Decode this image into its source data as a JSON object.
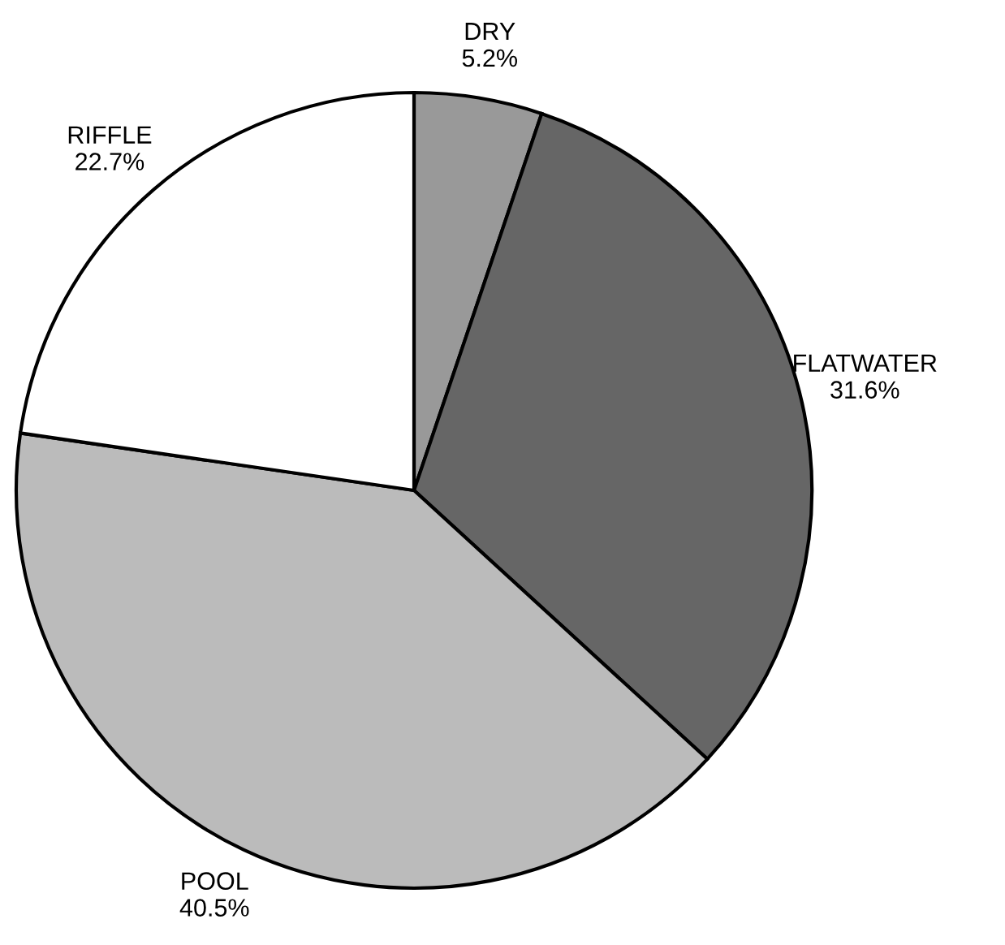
{
  "chart_data": {
    "type": "pie",
    "categories": [
      "DRY",
      "FLATWATER",
      "POOL",
      "RIFFLE"
    ],
    "values": [
      5.2,
      31.6,
      40.5,
      22.7
    ],
    "colors": [
      "#999999",
      "#666666",
      "#bbbbbb",
      "#ffffff"
    ],
    "value_labels": [
      "5.2%",
      "31.6%",
      "40.5%",
      "22.7%"
    ]
  }
}
